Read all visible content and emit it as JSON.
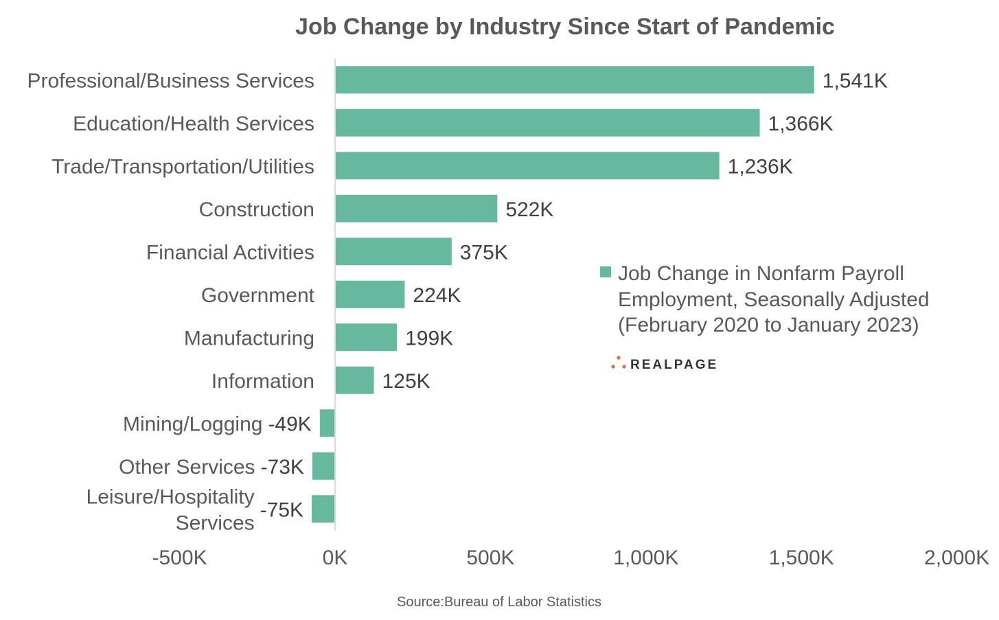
{
  "chart_data": {
    "type": "bar",
    "orientation": "horizontal",
    "title": "Job Change by Industry Since Start of Pandemic",
    "categories": [
      "Professional/Business Services",
      "Education/Health Services",
      "Trade/Transportation/Utilities",
      "Construction",
      "Financial Activities",
      "Government",
      "Manufacturing",
      "Information",
      "Mining/Logging",
      "Other Services",
      "Leisure/Hospitality Services"
    ],
    "series": [
      {
        "name": "Job Change in Nonfarm Payroll Employment, Seasonally Adjusted (February 2020 to January 2023)",
        "values": [
          1541,
          1366,
          1236,
          522,
          375,
          224,
          199,
          125,
          -49,
          -73,
          -75
        ],
        "labels": [
          "1,541K",
          "1,366K",
          "1,236K",
          "522K",
          "375K",
          "224K",
          "199K",
          "125K",
          "-49K",
          "-73K",
          "-75K"
        ]
      }
    ],
    "xlim": [
      -500,
      2000
    ],
    "xticks": [
      -500,
      0,
      500,
      1000,
      1500,
      2000
    ],
    "xtick_labels": [
      "-500K",
      "0K",
      "500K",
      "1,000K",
      "1,500K",
      "2,000K"
    ],
    "legend_lines": [
      "Job Change in Nonfarm Payroll",
      "Employment, Seasonally Adjusted",
      "(February 2020 to January 2023)"
    ],
    "legend_position": "right",
    "grid": false,
    "colors": {
      "bar": "#66b89e",
      "text": "#595959",
      "axis": "#d9d9d9",
      "brand_dot": "#e8673c"
    }
  },
  "source": "Source:Bureau of Labor Statistics",
  "brand": "REALPAGE"
}
